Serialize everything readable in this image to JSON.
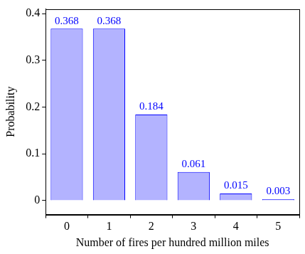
{
  "chart_data": {
    "type": "bar",
    "x_label": "Number of fires per hundred million miles",
    "y_label": "Probability",
    "categories": [
      "0",
      "1",
      "2",
      "3",
      "4",
      "5"
    ],
    "values": [
      0.368,
      0.368,
      0.184,
      0.061,
      0.015,
      0.003
    ],
    "color": "#b3b3ff",
    "ylim": [
      -0.03,
      0.41
    ],
    "yticks": [
      0,
      0.1,
      0.2,
      0.3,
      0.4
    ],
    "grid": false,
    "data_labels": true
  }
}
